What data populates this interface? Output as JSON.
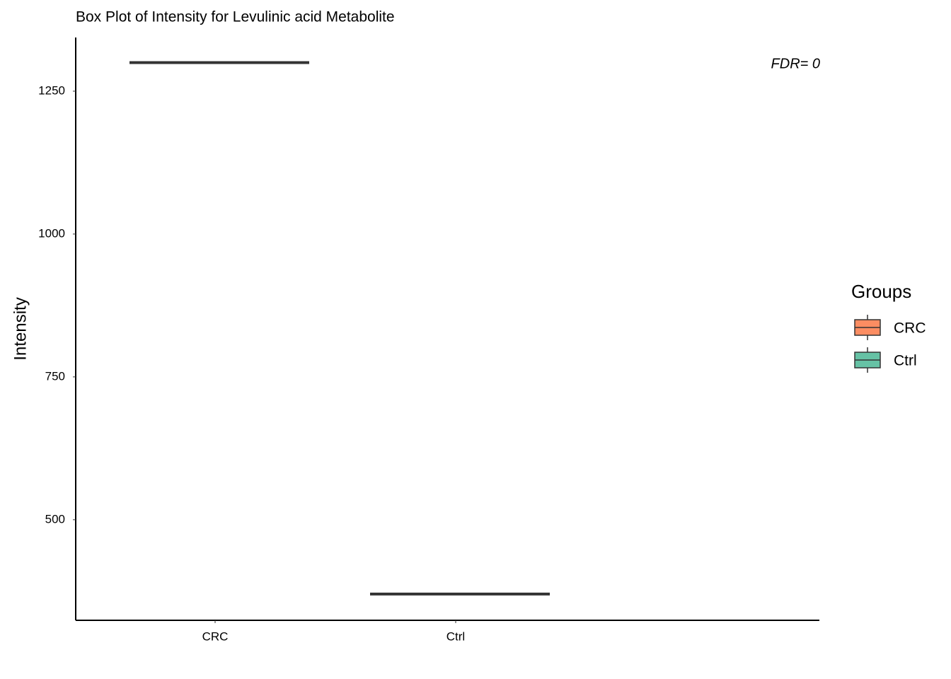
{
  "chart_data": {
    "type": "box",
    "title": "Box Plot of Intensity for Levulinic acid Metabolite",
    "y_label": "Intensity",
    "annotation": "FDR= 0",
    "legend_title": "Groups",
    "categories": [
      "CRC",
      "Ctrl"
    ],
    "series": [
      {
        "name": "CRC",
        "color": "#fc8d62",
        "min": 1300,
        "q1": 1300,
        "median": 1300,
        "q3": 1300,
        "max": 1300
      },
      {
        "name": "Ctrl",
        "color": "#66c2a5",
        "min": 370,
        "q1": 370,
        "median": 370,
        "q3": 370,
        "max": 370
      }
    ],
    "ylim": [
      324,
      1344
    ],
    "yticks": [
      500,
      750,
      1000,
      1250
    ],
    "grid": false
  }
}
